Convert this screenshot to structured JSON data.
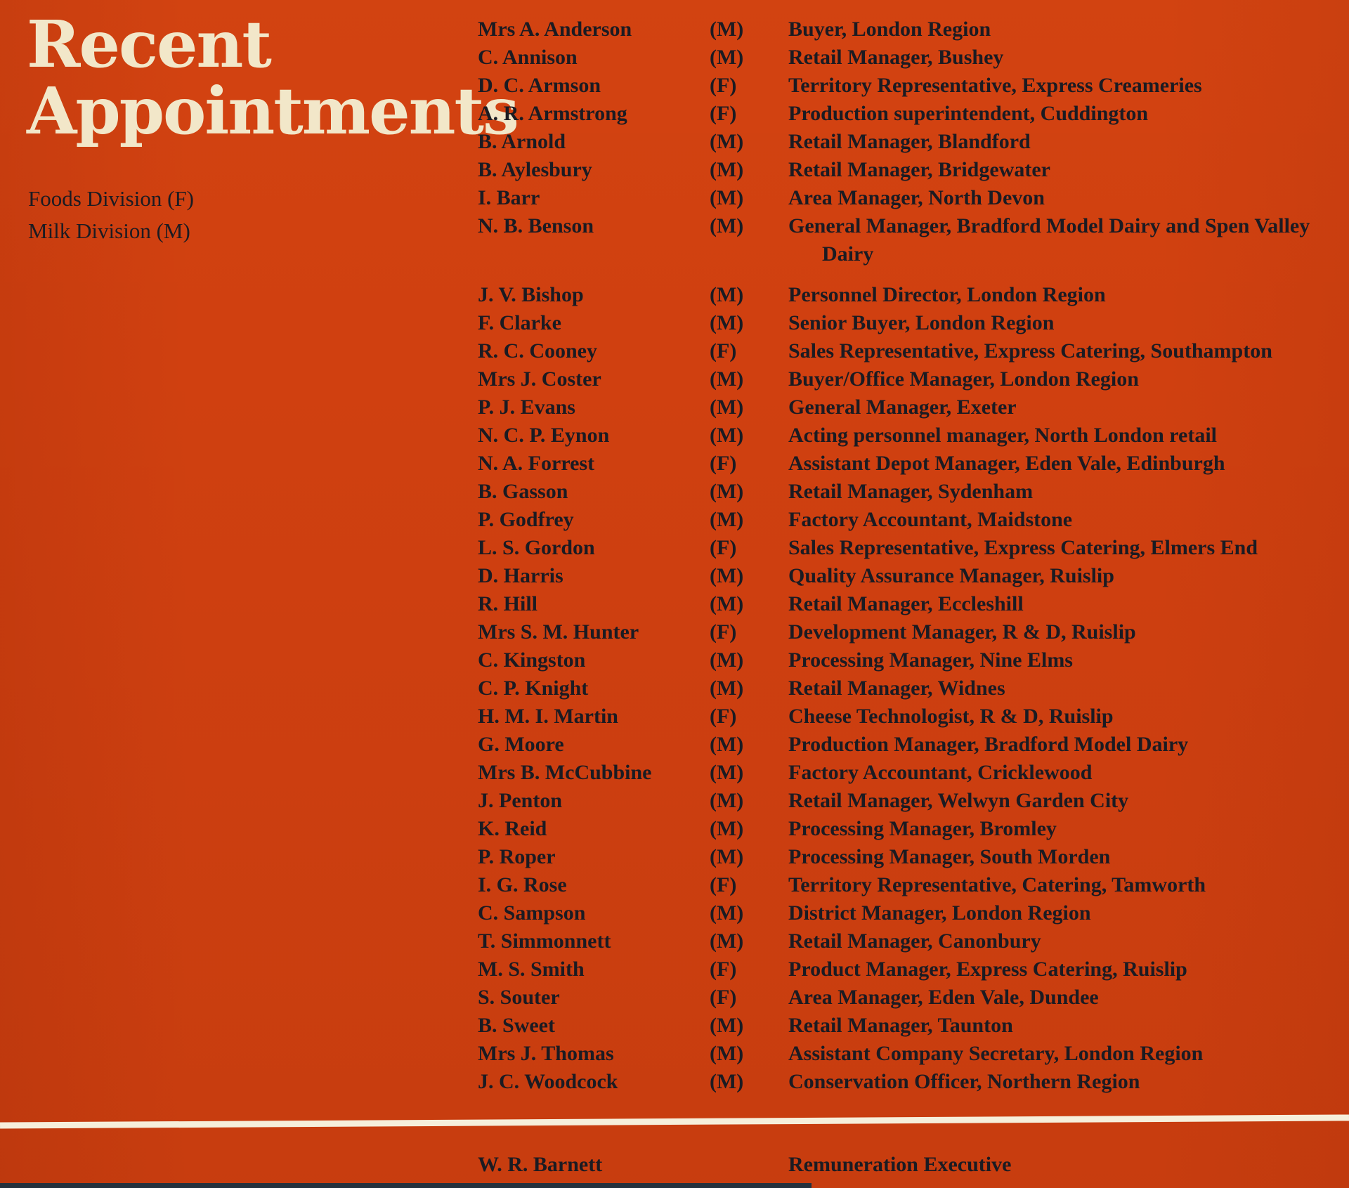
{
  "page": {
    "title_line1": "Recent",
    "title_line2": "Appointments",
    "key": [
      "Foods Division (F)",
      "Milk Division (M)"
    ],
    "colors": {
      "background": "#d04010",
      "title": "#f2e7c9",
      "text": "#1b1b22",
      "rule": "#f6efdb",
      "bottom_bar": "#24313d"
    }
  },
  "appointments": [
    {
      "name": "Mrs A. Anderson",
      "division": "(M)",
      "title": "Buyer, London Region"
    },
    {
      "name": "C. Annison",
      "division": "(M)",
      "title": "Retail Manager, Bushey"
    },
    {
      "name": "D. C. Armson",
      "division": "(F)",
      "title": "Territory Representative, Express Creameries"
    },
    {
      "name": "A. R. Armstrong",
      "division": "(F)",
      "title": "Production superintendent, Cuddington"
    },
    {
      "name": "B. Arnold",
      "division": "(M)",
      "title": "Retail Manager, Blandford"
    },
    {
      "name": "B. Aylesbury",
      "division": "(M)",
      "title": "Retail Manager, Bridgewater"
    },
    {
      "name": "I. Barr",
      "division": "(M)",
      "title": "Area Manager, North Devon"
    },
    {
      "name": "N. B. Benson",
      "division": "(M)",
      "title": "General Manager, Bradford Model Dairy and Spen Valley Dairy"
    },
    {
      "name": "J. V. Bishop",
      "division": "(M)",
      "title": "Personnel Director, London Region"
    },
    {
      "name": "F. Clarke",
      "division": "(M)",
      "title": "Senior Buyer, London Region"
    },
    {
      "name": "R. C. Cooney",
      "division": "(F)",
      "title": "Sales Representative, Express Catering, Southampton"
    },
    {
      "name": "Mrs J. Coster",
      "division": "(M)",
      "title": "Buyer/Office Manager, London Region"
    },
    {
      "name": "P. J. Evans",
      "division": "(M)",
      "title": "General Manager, Exeter"
    },
    {
      "name": "N. C. P. Eynon",
      "division": "(M)",
      "title": "Acting personnel manager, North London retail"
    },
    {
      "name": "N. A. Forrest",
      "division": "(F)",
      "title": "Assistant Depot Manager, Eden Vale, Edinburgh"
    },
    {
      "name": "B. Gasson",
      "division": "(M)",
      "title": "Retail Manager, Sydenham"
    },
    {
      "name": "P. Godfrey",
      "division": "(M)",
      "title": "Factory Accountant, Maidstone"
    },
    {
      "name": "L. S. Gordon",
      "division": "(F)",
      "title": "Sales Representative, Express Catering, Elmers End"
    },
    {
      "name": "D. Harris",
      "division": "(M)",
      "title": "Quality Assurance Manager, Ruislip"
    },
    {
      "name": "R. Hill",
      "division": "(M)",
      "title": "Retail Manager, Eccleshill"
    },
    {
      "name": "Mrs S. M. Hunter",
      "division": "(F)",
      "title": "Development Manager, R & D, Ruislip"
    },
    {
      "name": "C. Kingston",
      "division": "(M)",
      "title": "Processing Manager, Nine Elms"
    },
    {
      "name": "C. P. Knight",
      "division": "(M)",
      "title": "Retail Manager, Widnes"
    },
    {
      "name": "H. M. I. Martin",
      "division": "(F)",
      "title": "Cheese Technologist, R & D, Ruislip"
    },
    {
      "name": "G. Moore",
      "division": "(M)",
      "title": "Production Manager, Bradford Model Dairy"
    },
    {
      "name": "Mrs B. McCubbine",
      "division": "(M)",
      "title": "Factory Accountant, Cricklewood"
    },
    {
      "name": "J. Penton",
      "division": "(M)",
      "title": "Retail Manager, Welwyn Garden City"
    },
    {
      "name": "K. Reid",
      "division": "(M)",
      "title": "Processing Manager, Bromley"
    },
    {
      "name": "P. Roper",
      "division": "(M)",
      "title": "Processing Manager, South Morden"
    },
    {
      "name": "I. G. Rose",
      "division": "(F)",
      "title": "Territory Representative, Catering, Tamworth"
    },
    {
      "name": "C. Sampson",
      "division": "(M)",
      "title": "District Manager, London Region"
    },
    {
      "name": "T. Simmonnett",
      "division": "(M)",
      "title": "Retail Manager, Canonbury"
    },
    {
      "name": "M. S. Smith",
      "division": "(F)",
      "title": "Product Manager, Express Catering, Ruislip"
    },
    {
      "name": "S. Souter",
      "division": "(F)",
      "title": "Area Manager, Eden Vale, Dundee"
    },
    {
      "name": "B. Sweet",
      "division": "(M)",
      "title": "Retail Manager, Taunton"
    },
    {
      "name": "Mrs J. Thomas",
      "division": "(M)",
      "title": "Assistant Company Secretary, London Region"
    },
    {
      "name": "J. C. Woodcock",
      "division": "(M)",
      "title": "Conservation Officer, Northern Region"
    }
  ],
  "footer": {
    "name": "W. R. Barnett",
    "title": "Remuneration Executive"
  }
}
